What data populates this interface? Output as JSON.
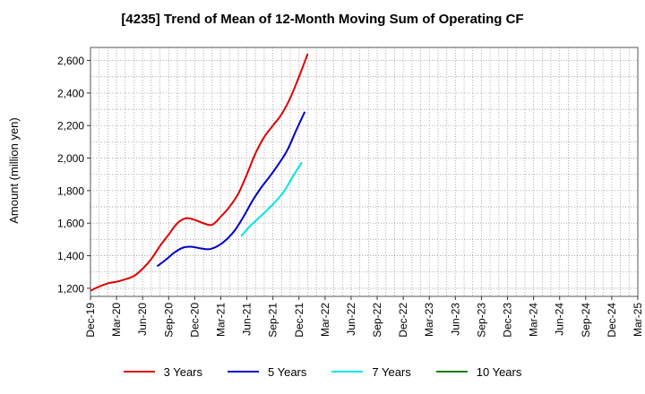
{
  "chart_data": {
    "type": "line",
    "title": "[4235]  Trend of Mean of 12-Month Moving Sum of Operating CF",
    "xlabel": "",
    "ylabel": "Amount (million yen)",
    "ylim": [
      1150,
      2680
    ],
    "yticks": [
      1200,
      1400,
      1600,
      1800,
      2000,
      2200,
      2400,
      2600
    ],
    "ytick_labels": [
      "1,200",
      "1,400",
      "1,600",
      "1,800",
      "2,000",
      "2,200",
      "2,400",
      "2,600"
    ],
    "xtick_labels": [
      "Dec-19",
      "Mar-20",
      "Jun-20",
      "Sep-20",
      "Dec-20",
      "Mar-21",
      "Jun-21",
      "Sep-21",
      "Dec-21",
      "Mar-22",
      "Jun-22",
      "Sep-22",
      "Dec-22",
      "Mar-23",
      "Jun-23",
      "Sep-23",
      "Dec-23",
      "Mar-24",
      "Jun-24",
      "Sep-24",
      "Dec-24",
      "Mar-25"
    ],
    "grid": true,
    "legend_position": "bottom",
    "series": [
      {
        "name": "3 Years",
        "color": "#dd0000",
        "start_index": 0,
        "values": [
          1185,
          1210,
          1230,
          1240,
          1255,
          1275,
          1320,
          1380,
          1460,
          1530,
          1600,
          1630,
          1620,
          1600,
          1590,
          1640,
          1700,
          1780,
          1900,
          2030,
          2130,
          2200,
          2270,
          2370,
          2500,
          2640
        ]
      },
      {
        "name": "5 Years",
        "color": "#0000cc",
        "start_index": 7.67,
        "values": [
          1335,
          1375,
          1420,
          1450,
          1455,
          1445,
          1440,
          1460,
          1500,
          1560,
          1645,
          1740,
          1820,
          1890,
          1965,
          2050,
          2170,
          2285
        ]
      },
      {
        "name": "7 Years",
        "color": "#00e5e5",
        "start_index": 17.33,
        "values": [
          1520,
          1580,
          1630,
          1680,
          1735,
          1800,
          1890,
          1975
        ]
      },
      {
        "name": "10 Years",
        "color": "#008000",
        "start_index": null,
        "values": []
      }
    ]
  }
}
